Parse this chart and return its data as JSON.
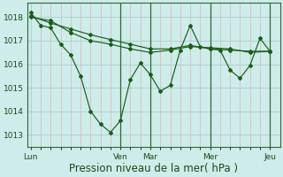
{
  "bg_color": "#ceecea",
  "grid_color_major": "#a8ceca",
  "grid_color_minor": "#d4b8b8",
  "line_color": "#1a5c1a",
  "marker_color": "#1a5c1a",
  "xlabel": "Pression niveau de la mer( hPa )",
  "xlabel_fontsize": 8.5,
  "yticks": [
    1013,
    1014,
    1015,
    1016,
    1017,
    1018
  ],
  "ylim": [
    1012.5,
    1018.6
  ],
  "xtick_labels": [
    "Lun",
    "Ven",
    "Mar",
    "Mer",
    "Jeu"
  ],
  "xtick_positions": [
    0,
    9,
    12,
    18,
    24
  ],
  "xlim": [
    -0.3,
    25.0
  ],
  "series1": [
    [
      0,
      1018.2
    ],
    [
      1,
      1017.65
    ],
    [
      2,
      1017.55
    ],
    [
      3,
      1016.85
    ],
    [
      4,
      1016.4
    ],
    [
      5,
      1015.5
    ],
    [
      6,
      1014.0
    ],
    [
      7,
      1013.45
    ],
    [
      8,
      1013.1
    ],
    [
      9,
      1013.6
    ],
    [
      10,
      1015.35
    ],
    [
      11,
      1016.05
    ],
    [
      12,
      1015.55
    ],
    [
      13,
      1014.85
    ],
    [
      14,
      1015.1
    ],
    [
      15,
      1016.6
    ],
    [
      16,
      1017.65
    ],
    [
      17,
      1016.75
    ],
    [
      18,
      1016.65
    ],
    [
      19,
      1016.6
    ],
    [
      20,
      1015.75
    ],
    [
      21,
      1015.4
    ],
    [
      22,
      1015.95
    ],
    [
      23,
      1017.1
    ],
    [
      24,
      1016.55
    ]
  ],
  "series2": [
    [
      0,
      1018.05
    ],
    [
      2,
      1017.75
    ],
    [
      4,
      1017.5
    ],
    [
      6,
      1017.25
    ],
    [
      8,
      1017.05
    ],
    [
      10,
      1016.85
    ],
    [
      12,
      1016.65
    ],
    [
      14,
      1016.65
    ],
    [
      16,
      1016.8
    ],
    [
      18,
      1016.65
    ],
    [
      20,
      1016.6
    ],
    [
      22,
      1016.55
    ],
    [
      24,
      1016.55
    ]
  ],
  "series3": [
    [
      0,
      1018.0
    ],
    [
      2,
      1017.85
    ],
    [
      4,
      1017.35
    ],
    [
      6,
      1017.0
    ],
    [
      8,
      1016.85
    ],
    [
      10,
      1016.65
    ],
    [
      12,
      1016.5
    ],
    [
      14,
      1016.6
    ],
    [
      16,
      1016.75
    ],
    [
      18,
      1016.7
    ],
    [
      20,
      1016.65
    ],
    [
      22,
      1016.5
    ],
    [
      24,
      1016.55
    ]
  ],
  "vlines": [
    9,
    12,
    18,
    24
  ],
  "vline_color": "#336633",
  "spine_color": "#336633"
}
